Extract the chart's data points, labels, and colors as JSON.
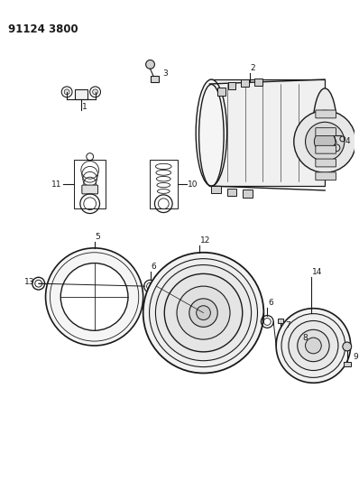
{
  "title": "91124 3800",
  "bg": "#ffffff",
  "lc": "#1a1a1a",
  "fig_w": 3.98,
  "fig_h": 5.33,
  "dpi": 100
}
